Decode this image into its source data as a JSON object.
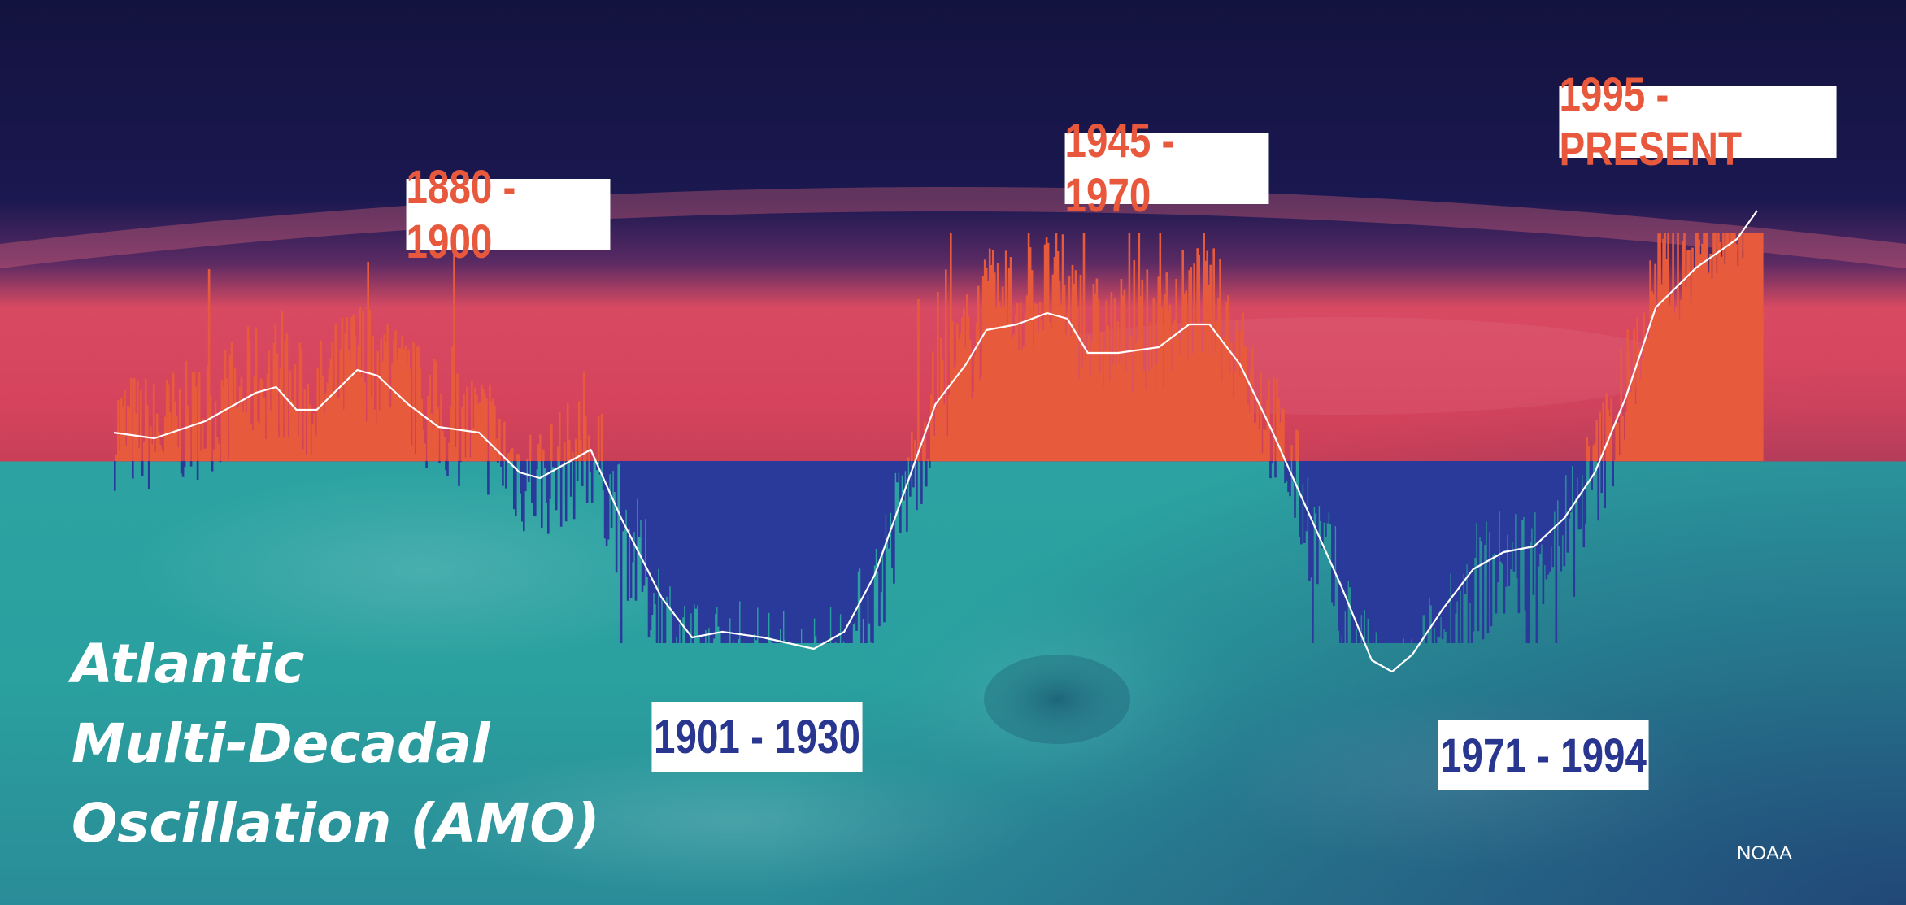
{
  "title": "Atlantic\nMulti-Decadal\nOscillation (AMO)",
  "source": "NOAA",
  "colors": {
    "warm_phase": "#e85a3c",
    "cool_phase": "#2a3a9a",
    "smoothed_line": "#ffffff",
    "sky": "#16174a",
    "atmosphere": "#d9475e",
    "ocean": "#2aa6a4"
  },
  "periods": [
    {
      "label": "1880 - 1900",
      "phase": "warm"
    },
    {
      "label": "1901 - 1930",
      "phase": "cool"
    },
    {
      "label": "1945 - 1970",
      "phase": "warm"
    },
    {
      "label": "1971 - 1994",
      "phase": "cool"
    },
    {
      "label": "1995 - PRESENT",
      "phase": "warm"
    }
  ],
  "chart_data": {
    "type": "bar",
    "x_range": [
      1856,
      2020
    ],
    "y_range": [
      -1,
      1
    ],
    "grid": false,
    "legend": "none",
    "smoothed_anomaly": [
      {
        "year": 1856,
        "value": 0.05
      },
      {
        "year": 1860,
        "value": 0.04
      },
      {
        "year": 1865,
        "value": 0.07
      },
      {
        "year": 1870,
        "value": 0.12
      },
      {
        "year": 1872,
        "value": 0.13
      },
      {
        "year": 1874,
        "value": 0.09
      },
      {
        "year": 1876,
        "value": 0.09
      },
      {
        "year": 1880,
        "value": 0.16
      },
      {
        "year": 1882,
        "value": 0.15
      },
      {
        "year": 1885,
        "value": 0.1
      },
      {
        "year": 1888,
        "value": 0.06
      },
      {
        "year": 1892,
        "value": 0.05
      },
      {
        "year": 1896,
        "value": -0.02
      },
      {
        "year": 1898,
        "value": -0.03
      },
      {
        "year": 1901,
        "value": 0.0
      },
      {
        "year": 1903,
        "value": 0.02
      },
      {
        "year": 1906,
        "value": -0.1
      },
      {
        "year": 1910,
        "value": -0.24
      },
      {
        "year": 1913,
        "value": -0.31
      },
      {
        "year": 1916,
        "value": -0.3
      },
      {
        "year": 1920,
        "value": -0.31
      },
      {
        "year": 1925,
        "value": -0.33
      },
      {
        "year": 1928,
        "value": -0.3
      },
      {
        "year": 1931,
        "value": -0.2
      },
      {
        "year": 1934,
        "value": -0.05
      },
      {
        "year": 1937,
        "value": 0.1
      },
      {
        "year": 1940,
        "value": 0.17
      },
      {
        "year": 1942,
        "value": 0.23
      },
      {
        "year": 1945,
        "value": 0.24
      },
      {
        "year": 1948,
        "value": 0.26
      },
      {
        "year": 1950,
        "value": 0.25
      },
      {
        "year": 1952,
        "value": 0.19
      },
      {
        "year": 1955,
        "value": 0.19
      },
      {
        "year": 1959,
        "value": 0.2
      },
      {
        "year": 1962,
        "value": 0.24
      },
      {
        "year": 1964,
        "value": 0.24
      },
      {
        "year": 1967,
        "value": 0.17
      },
      {
        "year": 1970,
        "value": 0.06
      },
      {
        "year": 1973,
        "value": -0.06
      },
      {
        "year": 1977,
        "value": -0.22
      },
      {
        "year": 1980,
        "value": -0.35
      },
      {
        "year": 1982,
        "value": -0.37
      },
      {
        "year": 1984,
        "value": -0.34
      },
      {
        "year": 1987,
        "value": -0.26
      },
      {
        "year": 1990,
        "value": -0.19
      },
      {
        "year": 1993,
        "value": -0.16
      },
      {
        "year": 1996,
        "value": -0.15
      },
      {
        "year": 1999,
        "value": -0.1
      },
      {
        "year": 2002,
        "value": -0.02
      },
      {
        "year": 2005,
        "value": 0.11
      },
      {
        "year": 2008,
        "value": 0.27
      },
      {
        "year": 2012,
        "value": 0.34
      },
      {
        "year": 2016,
        "value": 0.39
      },
      {
        "year": 2018,
        "value": 0.44
      }
    ]
  }
}
